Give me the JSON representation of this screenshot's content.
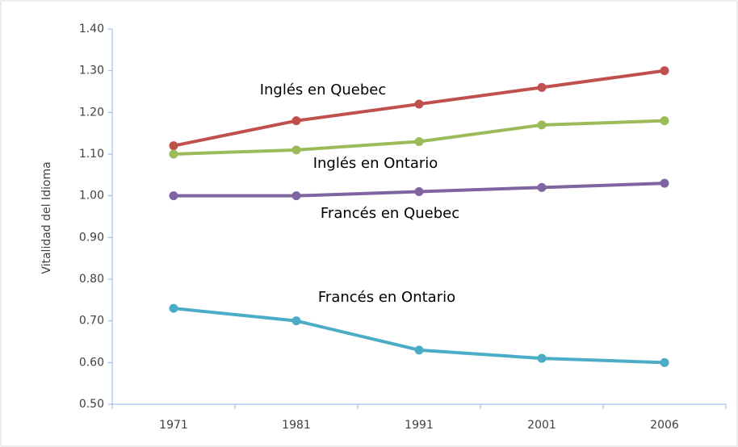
{
  "chart_data": {
    "type": "line",
    "y_label": "Vitalidad del Idioma",
    "categories": [
      "1971",
      "1981",
      "1991",
      "2001",
      "2006"
    ],
    "series": [
      {
        "name": "Inglés en Quebec",
        "color": "#c0504d",
        "values": [
          1.12,
          1.18,
          1.22,
          1.26,
          1.3
        ]
      },
      {
        "name": "Inglés en Ontario",
        "color": "#9bbb59",
        "values": [
          1.1,
          1.11,
          1.13,
          1.17,
          1.18
        ]
      },
      {
        "name": "Francés en Quebec",
        "color": "#8064a2",
        "values": [
          1.0,
          1.0,
          1.01,
          1.02,
          1.03
        ]
      },
      {
        "name": "Francés en Ontario",
        "color": "#4bacc6",
        "values": [
          0.73,
          0.7,
          0.63,
          0.61,
          0.6
        ]
      }
    ],
    "ylim": [
      0.5,
      1.4
    ],
    "yticks": [
      {
        "value": 0.5,
        "label": "0.50"
      },
      {
        "value": 0.6,
        "label": "0.60"
      },
      {
        "value": 0.7,
        "label": "0.70"
      },
      {
        "value": 0.8,
        "label": "0.80"
      },
      {
        "value": 0.9,
        "label": "0.90"
      },
      {
        "value": 1.0,
        "label": "1.00"
      },
      {
        "value": 1.1,
        "label": "1.10"
      },
      {
        "value": 1.2,
        "label": "1.20"
      },
      {
        "value": 1.3,
        "label": "1.30"
      },
      {
        "value": 1.4,
        "label": "1.40"
      }
    ],
    "grid": false
  }
}
